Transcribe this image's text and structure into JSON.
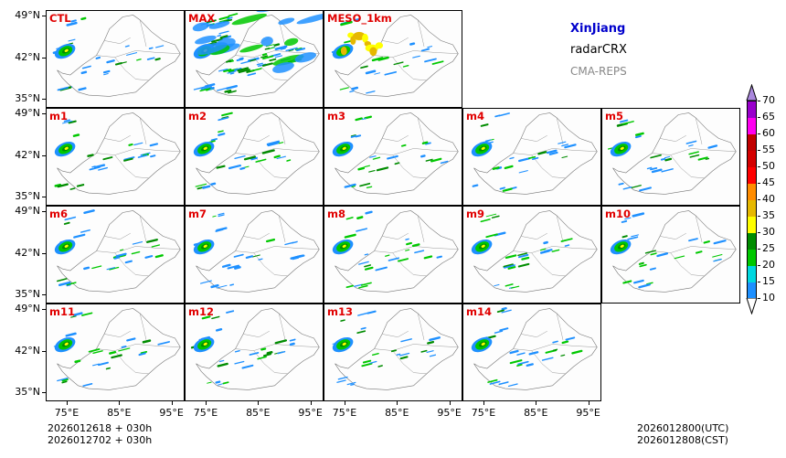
{
  "title": {
    "region": "XinJiang",
    "product": "radarCRX",
    "system": "CMA-REPS"
  },
  "panels": [
    {
      "label": "CTL",
      "row": 0,
      "col": 0
    },
    {
      "label": "MAX",
      "row": 0,
      "col": 1
    },
    {
      "label": "MESO_1km",
      "row": 0,
      "col": 2
    },
    {
      "label": "m1",
      "row": 1,
      "col": 0
    },
    {
      "label": "m2",
      "row": 1,
      "col": 1
    },
    {
      "label": "m3",
      "row": 1,
      "col": 2
    },
    {
      "label": "m4",
      "row": 1,
      "col": 3
    },
    {
      "label": "m5",
      "row": 1,
      "col": 4
    },
    {
      "label": "m6",
      "row": 2,
      "col": 0
    },
    {
      "label": "m7",
      "row": 2,
      "col": 1
    },
    {
      "label": "m8",
      "row": 2,
      "col": 2
    },
    {
      "label": "m9",
      "row": 2,
      "col": 3
    },
    {
      "label": "m10",
      "row": 2,
      "col": 4
    },
    {
      "label": "m11",
      "row": 3,
      "col": 0
    },
    {
      "label": "m12",
      "row": 3,
      "col": 1
    },
    {
      "label": "m13",
      "row": 3,
      "col": 2
    },
    {
      "label": "m14",
      "row": 3,
      "col": 3
    }
  ],
  "chart_data": {
    "type": "heatmap",
    "variable": "radarCRX",
    "x_ticks": [
      "75°E",
      "85°E",
      "95°E"
    ],
    "x_tick_values": [
      75,
      85,
      95
    ],
    "y_ticks": [
      "49°N",
      "42°N",
      "35°N"
    ],
    "y_tick_values": [
      49,
      42,
      35
    ],
    "xlim": [
      71,
      97.5
    ],
    "ylim": [
      33.5,
      50
    ],
    "colorbar": {
      "levels": [
        10,
        15,
        20,
        25,
        30,
        35,
        40,
        45,
        50,
        55,
        60,
        65,
        70
      ],
      "labels": [
        "10",
        "15",
        "20",
        "25",
        "30",
        "35",
        "40",
        "45",
        "50",
        "55",
        "60",
        "65",
        "70"
      ],
      "colors": [
        "#1e90ff",
        "#00d8e0",
        "#00c800",
        "#008c00",
        "#ffff00",
        "#e6b800",
        "#ff8c00",
        "#ff0000",
        "#d40000",
        "#c00000",
        "#ff00f0",
        "#9900cc",
        "#aa88dd"
      ],
      "under_color": "#ffffff"
    }
  },
  "footer": {
    "init_line1": "2026012618  +  030h",
    "init_line2": "2026012702  +  030h",
    "valid_utc": "2026012800(UTC)",
    "valid_cst": "2026012808(CST)"
  }
}
